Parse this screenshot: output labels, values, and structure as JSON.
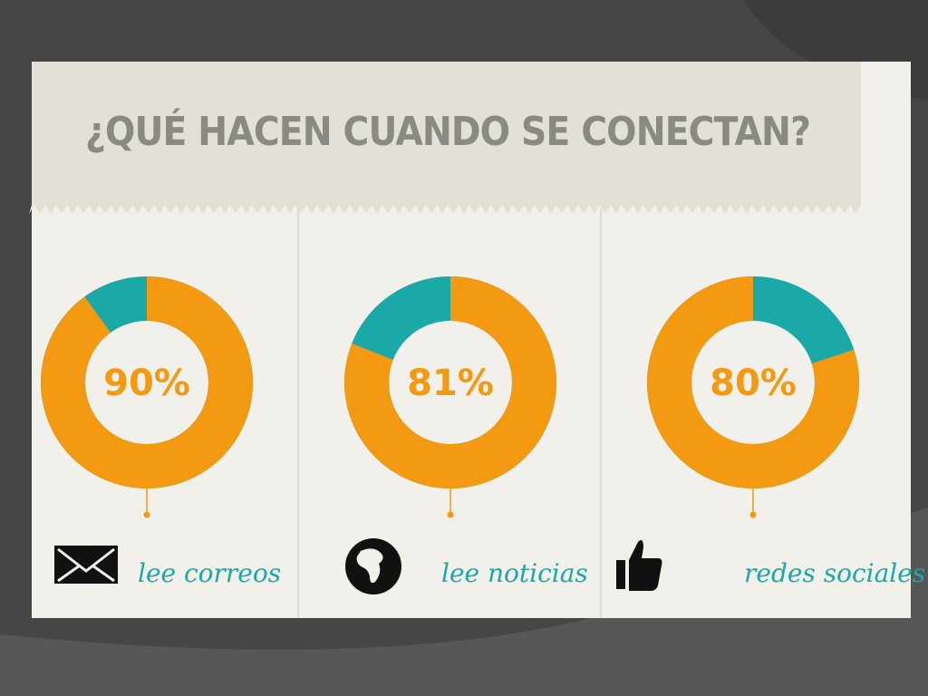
{
  "title": "¿QUÉ HACEN CUANDO SE CONECTAN?",
  "chart_data": [
    {
      "type": "donut",
      "categories": [
        "lee correos"
      ],
      "values": [
        90
      ],
      "value_labels": [
        "90%"
      ],
      "color": "#f39a12",
      "rest_color": "#1aa9a6",
      "clockwise": true
    },
    {
      "type": "donut",
      "categories": [
        "lee noticias"
      ],
      "values": [
        81
      ],
      "value_labels": [
        "81%"
      ],
      "color": "#f39a12",
      "rest_color": "#1aa9a6",
      "clockwise": true
    },
    {
      "type": "donut",
      "categories": [
        "redes sociales"
      ],
      "values": [
        80
      ],
      "value_labels": [
        "80%"
      ],
      "color": "#f39a12",
      "rest_color": "#1aa9a6",
      "clockwise": false
    }
  ]
}
